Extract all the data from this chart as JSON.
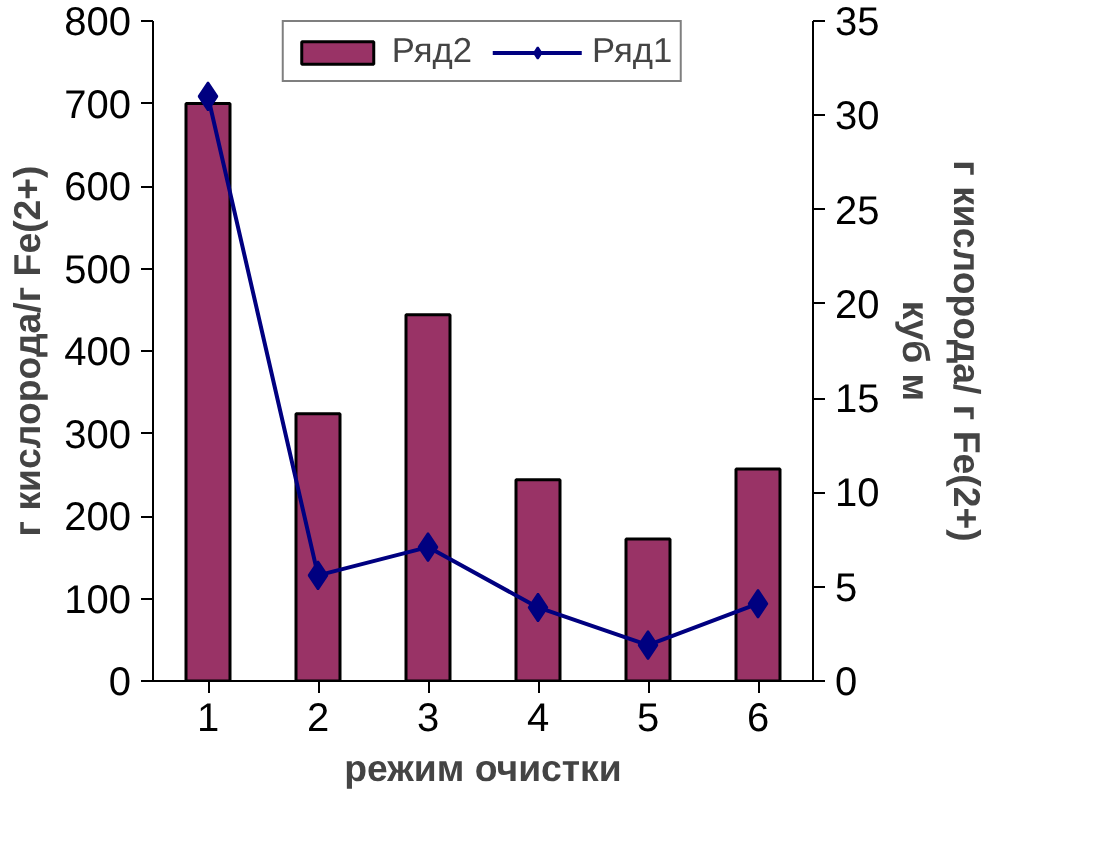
{
  "chart_data": {
    "type": "bar",
    "categories": [
      "1",
      "2",
      "3",
      "4",
      "5",
      "6"
    ],
    "xlabel": "режим очистки",
    "ylabel": "г кислорода/г Fe(2+)",
    "y2label": "г кислорода/ г Fe(2+)\nкуб м",
    "series": [
      {
        "name": "Ряд2",
        "color": "#993366",
        "values": [
          700,
          324,
          444,
          244,
          172,
          257
        ]
      },
      {
        "name": "Ряд1",
        "type": "line",
        "axis": "y2",
        "color": "#000080",
        "marker": "diamond",
        "values": [
          31.0,
          5.6,
          7.1,
          3.9,
          1.9,
          4.1
        ]
      }
    ],
    "ylim": [
      0,
      800
    ],
    "yticks": [
      0,
      100,
      200,
      300,
      400,
      500,
      600,
      700,
      800
    ],
    "y2lim": [
      0,
      35
    ],
    "y2ticks": [
      0,
      5,
      10,
      15,
      20,
      25,
      30,
      35
    ],
    "grid": false,
    "legend": "top"
  }
}
